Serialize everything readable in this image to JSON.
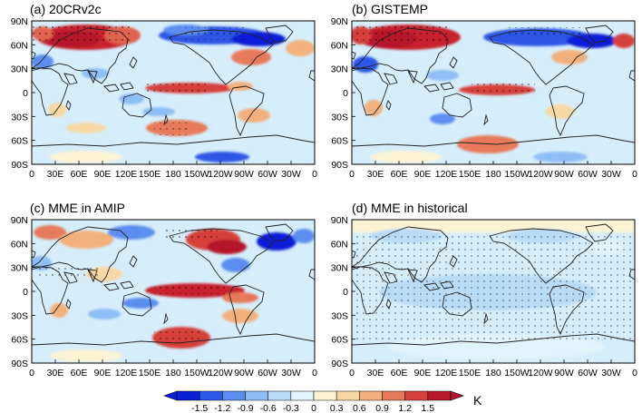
{
  "panels": [
    {
      "id": "a",
      "title": "(a) 20CRv2c"
    },
    {
      "id": "b",
      "title": "(b) GISTEMP"
    },
    {
      "id": "c",
      "title": "(c) MME in AMIP"
    },
    {
      "id": "d",
      "title": "(d) MME in historical"
    }
  ],
  "lat_labels": [
    "90N",
    "60N",
    "30N",
    "0",
    "30S",
    "60S",
    "90S"
  ],
  "lon_labels": [
    "0",
    "30E",
    "60E",
    "90E",
    "120E",
    "150E",
    "180",
    "150W",
    "120W",
    "90W",
    "60W",
    "30W",
    "0"
  ],
  "colorbar": {
    "ticks": [
      "-1.5",
      "-1.2",
      "-0.9",
      "-0.6",
      "-0.3",
      "0",
      "0.3",
      "0.6",
      "0.9",
      "1.2",
      "1.5"
    ],
    "unit": "K",
    "colors": [
      "#0b1fd6",
      "#2d57e6",
      "#5c8ef0",
      "#8fbdf6",
      "#b8dcf8",
      "#e1f3fb",
      "#fbf3d4",
      "#f7d8a5",
      "#f2b07c",
      "#e67a5a",
      "#d6403a",
      "#b5182a"
    ]
  }
}
